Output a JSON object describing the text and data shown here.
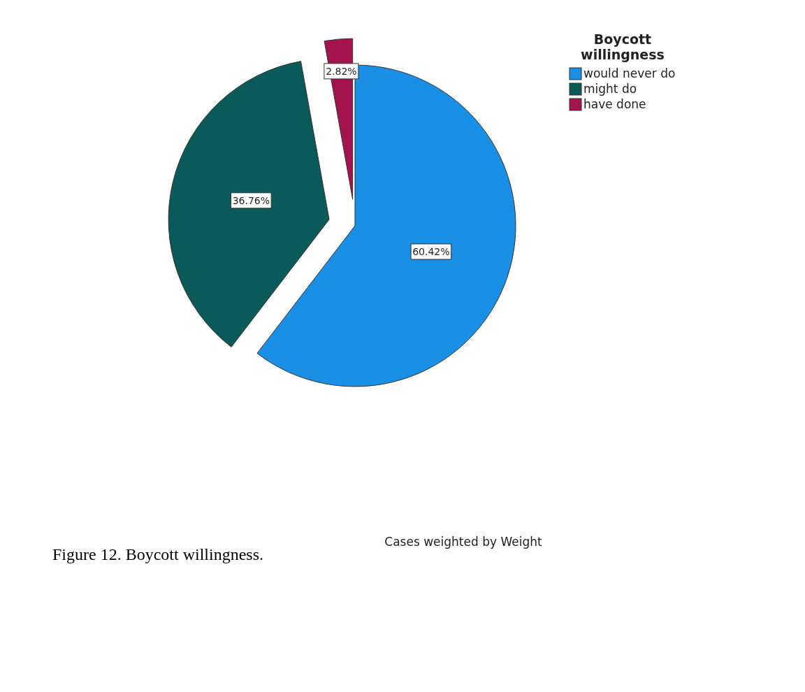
{
  "chart_data": {
    "type": "pie",
    "legend_title": "Boycott willingness",
    "legend": "top right",
    "categories": [
      "would never do",
      "might do",
      "have done"
    ],
    "values": [
      60.42,
      36.76,
      2.82
    ],
    "value_labels": [
      "60.42%",
      "36.76%",
      "2.82%"
    ],
    "colors": [
      "#1a8fe6",
      "#0b5a5a",
      "#a3144f"
    ],
    "annotations": [
      "Cases weighted by Weight",
      "Figure 12. Boycott willingness."
    ]
  }
}
